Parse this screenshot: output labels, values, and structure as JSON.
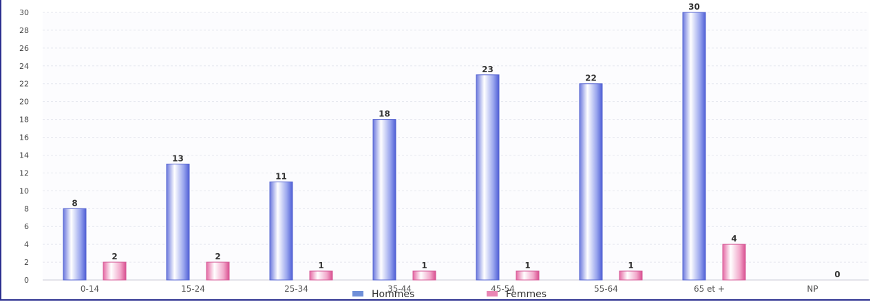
{
  "chart_data": {
    "type": "bar",
    "title": "",
    "xlabel": "",
    "ylabel": "",
    "categories": [
      "0-14",
      "15-24",
      "25-34",
      "35-44",
      "45-54",
      "55-64",
      "65 et +",
      "NP"
    ],
    "series": [
      {
        "name": "Hommes",
        "values": [
          8,
          13,
          11,
          18,
          23,
          22,
          30,
          null
        ],
        "color": "#6f7fe0"
      },
      {
        "name": "Femmes",
        "values": [
          2,
          2,
          1,
          1,
          1,
          1,
          4,
          0
        ],
        "color": "#e986b4"
      }
    ],
    "ylim": [
      0,
      30
    ],
    "yticks": [
      0,
      2,
      4,
      6,
      8,
      10,
      12,
      14,
      16,
      18,
      20,
      22,
      24,
      26,
      28,
      30
    ],
    "grid": true,
    "legend": "bottom-center"
  }
}
